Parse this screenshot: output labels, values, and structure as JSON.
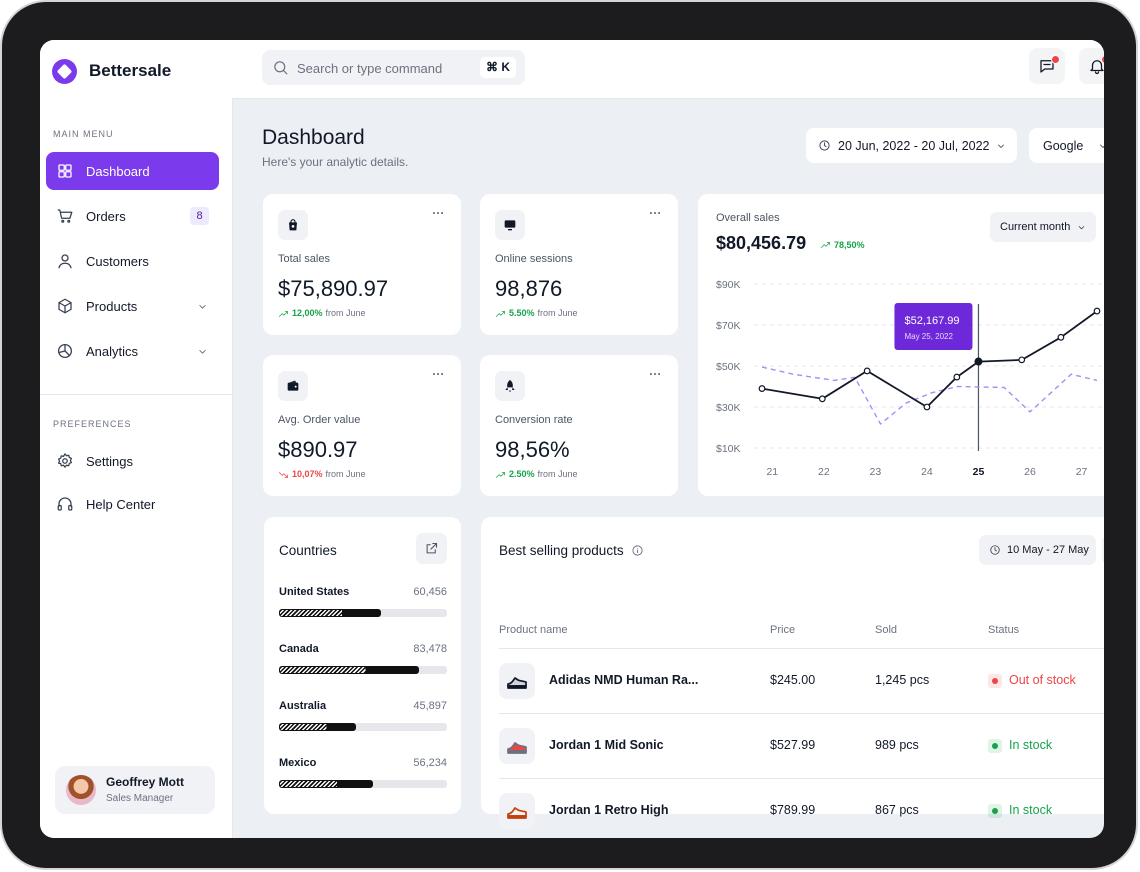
{
  "brand": "Bettersale",
  "search": {
    "placeholder": "Search or type command",
    "shortcut": "⌘ K"
  },
  "sidebar": {
    "main_menu_label": "MAIN MENU",
    "menu": [
      {
        "label": "Dashboard",
        "active": true
      },
      {
        "label": "Orders",
        "badge": 8
      },
      {
        "label": "Customers"
      },
      {
        "label": "Products",
        "expandable": true
      },
      {
        "label": "Analytics",
        "expandable": true
      }
    ],
    "preferences_label": "PREFERENCES",
    "preferences": [
      "Settings",
      "Help Center"
    ],
    "user": {
      "name": "Geoffrey Mott",
      "role": "Sales Manager"
    }
  },
  "header": {
    "title": "Dashboard",
    "subtitle": "Here's your analytic details.",
    "date_range": "20 Jun, 2022 - 20 Jul, 2022",
    "source": "Google"
  },
  "stats": [
    {
      "label": "Total sales",
      "value": "$75,890.97",
      "change": "12,00%",
      "suffix": "from June",
      "trend": "up",
      "color": "#16a34a"
    },
    {
      "label": "Online sessions",
      "value": "98,876",
      "change": "5.50%",
      "suffix": "from June",
      "trend": "up",
      "color": "#16a34a"
    },
    {
      "label": "Avg. Order value",
      "value": "$890.97",
      "change": "10,07%",
      "suffix": "from June",
      "trend": "down",
      "color": "#ef4444"
    },
    {
      "label": "Conversion rate",
      "value": "98,56%",
      "change": "2.50%",
      "suffix": "from June",
      "trend": "up",
      "color": "#16a34a"
    }
  ],
  "chart_data": {
    "type": "line",
    "title": "Overall sales",
    "total": "$80,456.79",
    "change": "78,50%",
    "change_color": "#16a34a",
    "period": "Current month",
    "xlim": [
      20.8,
      27.3
    ],
    "xticks": [
      21,
      22,
      23,
      24,
      25,
      26,
      27
    ],
    "ylim": [
      10000,
      90000
    ],
    "yticks": [
      {
        "value": 10000,
        "label": "$10K"
      },
      {
        "value": 30000,
        "label": "$30K"
      },
      {
        "value": 50000,
        "label": "$50K"
      },
      {
        "value": 70000,
        "label": "$70K"
      },
      {
        "value": 90000,
        "label": "$90K"
      }
    ],
    "grid": true,
    "series": [
      {
        "color": "#a78bfa",
        "dash": true,
        "markers": false,
        "x": [
          20.8,
          21.4,
          22.2,
          22.6,
          23.1,
          23.6,
          24.1,
          24.6,
          25.5,
          26.0,
          26.8,
          27.3
        ],
        "values": [
          49500,
          46000,
          43000,
          44500,
          21700,
          32000,
          37000,
          40000,
          39500,
          27600,
          46000,
          43000
        ]
      },
      {
        "color": "#111827",
        "dash": false,
        "markers": true,
        "x": [
          20.8,
          21.97,
          22.84,
          24.0,
          24.58,
          25,
          25.84,
          26.6,
          27.3
        ],
        "values": [
          39000,
          34000,
          47600,
          30000,
          44600,
          52167.99,
          53000,
          64000,
          76800
        ]
      }
    ],
    "tooltip": {
      "x": 25,
      "value": 52167.99,
      "label": "$52,167.99",
      "date": "May 25, 2022",
      "color": "#6d28d9"
    }
  },
  "countries": {
    "title": "Countries",
    "xlim": [
      0,
      100000
    ],
    "items": [
      {
        "name": "United States",
        "value": 60456,
        "label": "60,456"
      },
      {
        "name": "Canada",
        "value": 83478,
        "label": "83,478"
      },
      {
        "name": "Australia",
        "value": 45897,
        "label": "45,897"
      },
      {
        "name": "Mexico",
        "value": 56234,
        "label": "56,234"
      }
    ]
  },
  "products": {
    "title": "Best selling products",
    "date_range": "10 May - 27 May",
    "columns": [
      "Product name",
      "Price",
      "Sold",
      "Status"
    ],
    "rows": [
      {
        "name": "Adidas NMD Human Ra...",
        "price": "$245.00",
        "sold": "1,245 pcs",
        "status": "Out of stock",
        "status_color": "#ef4444"
      },
      {
        "name": "Jordan 1 Mid Sonic",
        "price": "$527.99",
        "sold": "989 pcs",
        "status": "In stock",
        "status_color": "#16a34a"
      },
      {
        "name": "Jordan 1 Retro High",
        "price": "$789.99",
        "sold": "867 pcs",
        "status": "In stock",
        "status_color": "#16a34a"
      }
    ]
  }
}
